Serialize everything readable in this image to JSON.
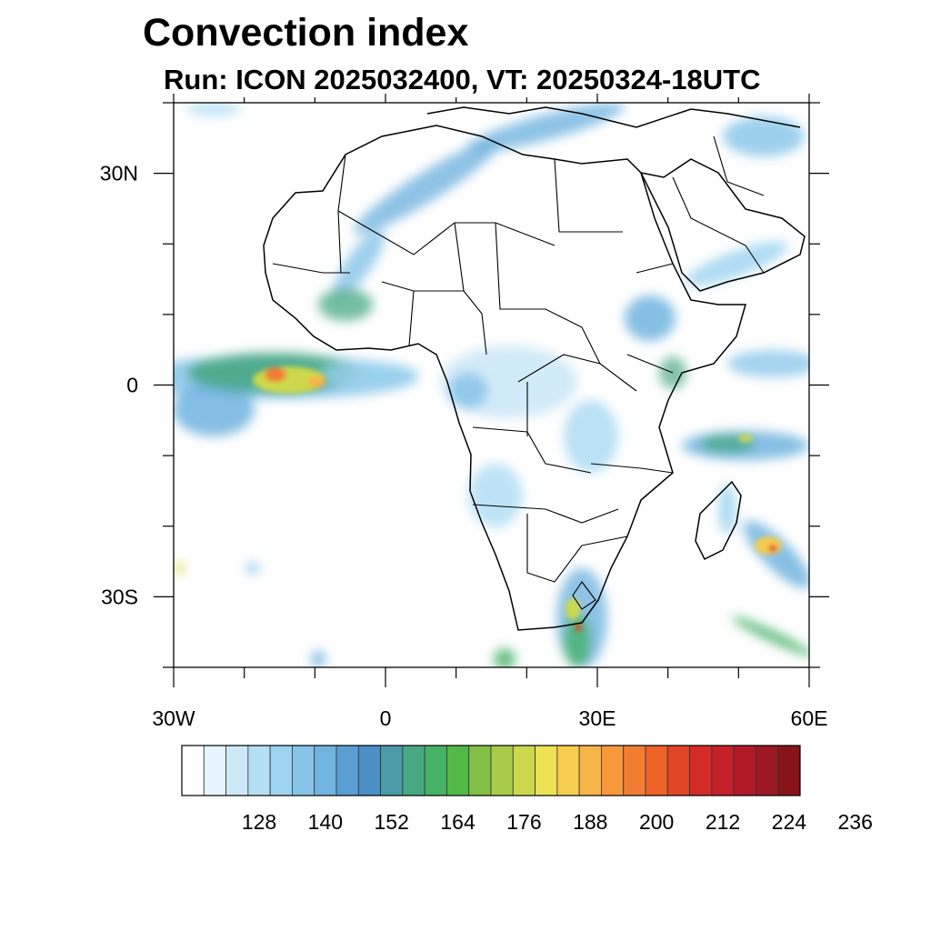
{
  "title": "Convection index",
  "subtitle": "Run: ICON 2025032400,  VT: 20250324-18UTC",
  "map": {
    "projection": "lat-lon",
    "lon_range": [
      -30,
      60
    ],
    "lat_range": [
      -40,
      40
    ],
    "x_tick_labels": [
      {
        "lon": -30,
        "label": "30W"
      },
      {
        "lon": 0,
        "label": "0"
      },
      {
        "lon": 30,
        "label": "30E"
      },
      {
        "lon": 60,
        "label": "60E"
      }
    ],
    "y_tick_labels": [
      {
        "lat": 30,
        "label": "30N"
      },
      {
        "lat": 0,
        "label": "0"
      },
      {
        "lat": -30,
        "label": "30S"
      }
    ],
    "minor_tick_step_deg": 10
  },
  "colorbar": {
    "labels": [
      "128",
      "140",
      "152",
      "164",
      "176",
      "188",
      "200",
      "212",
      "224",
      "236"
    ],
    "colors": [
      "#ffffff",
      "#e6f4fb",
      "#cde9f7",
      "#b4def4",
      "#9bd3f0",
      "#86c4ea",
      "#72b4e0",
      "#5b9fd2",
      "#4c8fc4",
      "#4a9aa8",
      "#48a884",
      "#46b266",
      "#52b848",
      "#82c046",
      "#a8cc4a",
      "#cdd94c",
      "#ede254",
      "#f6cd4f",
      "#f8b446",
      "#f7983b",
      "#f27c31",
      "#ec6229",
      "#e14626",
      "#d52b28",
      "#c51f2a",
      "#b21a27",
      "#9c1822",
      "#861419"
    ]
  },
  "chart_data": {
    "type": "heatmap",
    "title": "Convection index",
    "subtitle": "Run: ICON 2025032400,  VT: 20250324-18UTC",
    "x": {
      "range": [
        -30,
        60
      ],
      "ticks": [
        "30W",
        "0",
        "30E",
        "60E"
      ]
    },
    "y": {
      "range": [
        -40,
        40
      ],
      "ticks": [
        "30N",
        "0",
        "30S"
      ]
    },
    "colorbar_labels": [
      128,
      140,
      152,
      164,
      176,
      188,
      200,
      212,
      224,
      236
    ],
    "regions": [
      {
        "lon": -16,
        "lat": 1,
        "value": 212
      },
      {
        "lon": -22,
        "lat": 1,
        "value": 176
      },
      {
        "lon": -27,
        "lat": -4,
        "value": 152
      },
      {
        "lon": 52,
        "lat": -22,
        "value": 200
      },
      {
        "lon": 29,
        "lat": -31,
        "value": 188
      },
      {
        "lon": 38,
        "lat": 11,
        "value": 152
      },
      {
        "lon": 50,
        "lat": -7,
        "value": 164
      },
      {
        "lon": -4,
        "lat": 27,
        "value": 152
      },
      {
        "lon": 12,
        "lat": 36,
        "value": 152
      },
      {
        "lon": 2,
        "lat": 0,
        "value": 140
      }
    ]
  }
}
